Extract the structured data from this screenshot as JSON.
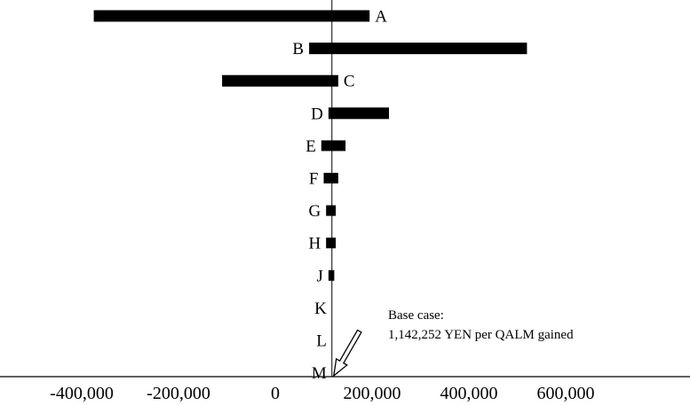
{
  "chart_data": {
    "type": "bar",
    "orientation": "horizontal",
    "subtype": "tornado",
    "title": "",
    "xlabel": "",
    "ylabel": "",
    "xlim": [
      -445000,
      745000
    ],
    "x_ticks": [
      -400000,
      -200000,
      0,
      200000,
      400000,
      600000
    ],
    "x_tick_labels": [
      "-400,000",
      "-200,000",
      "0",
      "200,000",
      "400,000",
      "600,000"
    ],
    "base_value": 1142252,
    "categories": [
      "A",
      "B",
      "C",
      "D",
      "E",
      "F",
      "G",
      "H",
      "J",
      "K",
      "L",
      "M"
    ],
    "ranges": [
      [
        -375000,
        195000
      ],
      [
        70000,
        520000
      ],
      [
        -110000,
        130000
      ],
      [
        110000,
        235000
      ],
      [
        95000,
        145000
      ],
      [
        100000,
        130000
      ],
      [
        105000,
        125000
      ],
      [
        105000,
        125000
      ],
      [
        110000,
        122000
      ],
      [
        117000,
        117000
      ],
      [
        117000,
        117000
      ],
      [
        117000,
        117000
      ]
    ],
    "label_side": [
      "right",
      "left",
      "right",
      "left",
      "left",
      "left",
      "left",
      "left",
      "left",
      "left",
      "left",
      "left"
    ],
    "annotation": {
      "line1": "Base case:",
      "line2": "1,142,252  YEN per QALM gained"
    },
    "grid": false,
    "legend": "none",
    "colors": {
      "bar": "#000000",
      "axis": "#000000",
      "background": "#ffffff"
    }
  }
}
